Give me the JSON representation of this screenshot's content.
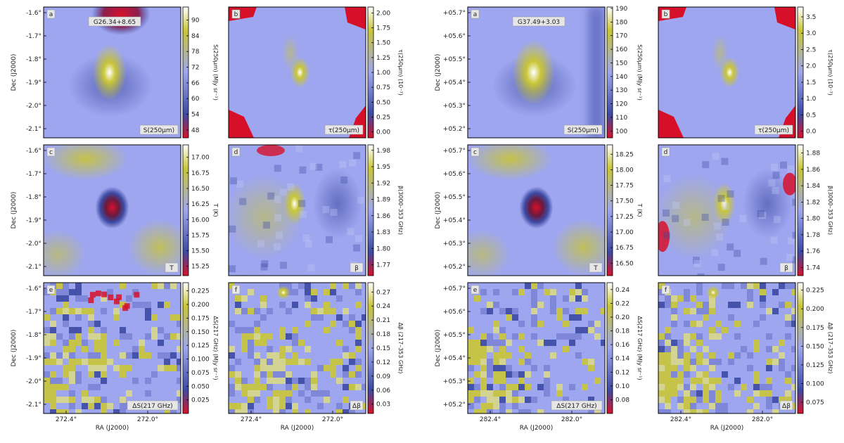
{
  "chart_data": {
    "type": "heatmap",
    "fields": [
      {
        "title": "G26.34+8.65",
        "ra_ticks": [
          "272.4°",
          "272.0°"
        ],
        "dec_ticks": [
          "-1.6°",
          "-1.7°",
          "-1.8°",
          "-1.9°",
          "-2.0°",
          "-2.1°"
        ],
        "xlabel": "RA (J2000)",
        "ylabel": "Dec (J2000)",
        "panels": [
          {
            "letter": "a",
            "map": "S(250μm)",
            "cbar_label": "S(250μm) (MJy sr⁻¹)",
            "ticks": [
              "90",
              "84",
              "78",
              "72",
              "66",
              "60",
              "54",
              "48"
            ],
            "vmin": 45,
            "vmax": 95
          },
          {
            "letter": "b",
            "map": "τ(250μm)",
            "cbar_label": "τ(250μm) (10⁻³)",
            "ticks": [
              "2.00",
              "1.75",
              "1.50",
              "1.25",
              "1.00",
              "0.75",
              "0.50",
              "0.25",
              "0.00"
            ],
            "vmin": -0.1,
            "vmax": 2.1
          },
          {
            "letter": "c",
            "map": "T",
            "cbar_label": "T (K)",
            "ticks": [
              "17.00",
              "16.75",
              "16.50",
              "16.25",
              "16.00",
              "15.75",
              "15.50",
              "15.25"
            ],
            "vmin": 15.1,
            "vmax": 17.2
          },
          {
            "letter": "d",
            "map": "β",
            "cbar_label": "β(3000–353 GHz)",
            "ticks": [
              "1.98",
              "1.95",
              "1.92",
              "1.89",
              "1.86",
              "1.83",
              "1.80",
              "1.77"
            ],
            "vmin": 1.75,
            "vmax": 1.99
          },
          {
            "letter": "e",
            "map": "ΔS(217 GHz)",
            "cbar_label": "ΔS(217 GHz) (MJy sr⁻¹)",
            "ticks": [
              "0.225",
              "0.200",
              "0.175",
              "0.150",
              "0.125",
              "0.100",
              "0.075",
              "0.050",
              "0.025"
            ],
            "vmin": 0.0,
            "vmax": 0.24
          },
          {
            "letter": "f",
            "map": "Δβ",
            "cbar_label": "Δβ (217–353 GHz)",
            "ticks": [
              "0.27",
              "0.24",
              "0.21",
              "0.18",
              "0.15",
              "0.12",
              "0.09",
              "0.06",
              "0.03"
            ],
            "vmin": 0.01,
            "vmax": 0.29
          }
        ]
      },
      {
        "title": "G37.49+3.03",
        "ra_ticks": [
          "282.4°",
          "282.0°"
        ],
        "dec_ticks": [
          "+05.7°",
          "+05.6°",
          "+05.5°",
          "+05.4°",
          "+05.3°",
          "+05.2°"
        ],
        "xlabel": "RA (J2000)",
        "ylabel": "Dec (J2000)",
        "panels": [
          {
            "letter": "a",
            "map": "S(250μm)",
            "cbar_label": "S(250μm) (MJy sr⁻¹)",
            "ticks": [
              "190",
              "180",
              "170",
              "160",
              "150",
              "140",
              "130",
              "120",
              "110",
              "100"
            ],
            "vmin": 95,
            "vmax": 191
          },
          {
            "letter": "b",
            "map": "τ(250μm)",
            "cbar_label": "τ(250μm) (10⁻³)",
            "ticks": [
              "3.5",
              "3.0",
              "2.5",
              "2.0",
              "1.5",
              "1.0",
              "0.5",
              "0.0"
            ],
            "vmin": -0.2,
            "vmax": 3.8
          },
          {
            "letter": "c",
            "map": "T",
            "cbar_label": "T (K)",
            "ticks": [
              "18.25",
              "18.00",
              "17.75",
              "17.50",
              "17.25",
              "17.00",
              "16.75",
              "16.50"
            ],
            "vmin": 16.3,
            "vmax": 18.4
          },
          {
            "letter": "d",
            "map": "β",
            "cbar_label": "β(3000–353 GHz)",
            "ticks": [
              "1.88",
              "1.86",
              "1.84",
              "1.82",
              "1.80",
              "1.78",
              "1.76",
              "1.74"
            ],
            "vmin": 1.73,
            "vmax": 1.89
          },
          {
            "letter": "e",
            "map": "ΔS(217 GHz)",
            "cbar_label": "ΔS(217 GHz) (MJy sr⁻¹)",
            "ticks": [
              "0.24",
              "0.22",
              "0.20",
              "0.18",
              "0.16",
              "0.14",
              "0.12",
              "0.10",
              "0.08"
            ],
            "vmin": 0.06,
            "vmax": 0.25
          },
          {
            "letter": "f",
            "map": "Δβ",
            "cbar_label": "Δβ (217–353 GHz)",
            "ticks": [
              "0.225",
              "0.200",
              "0.175",
              "0.150",
              "0.125",
              "0.100",
              "0.075"
            ],
            "vmin": 0.06,
            "vmax": 0.235
          }
        ]
      }
    ]
  },
  "colors": {
    "map_low": "#d7102a",
    "map_mid_low": "#3c4aa3",
    "map_mid": "#9ea6ef",
    "map_mid_high": "#c9c637",
    "map_high": "#ffffff"
  }
}
